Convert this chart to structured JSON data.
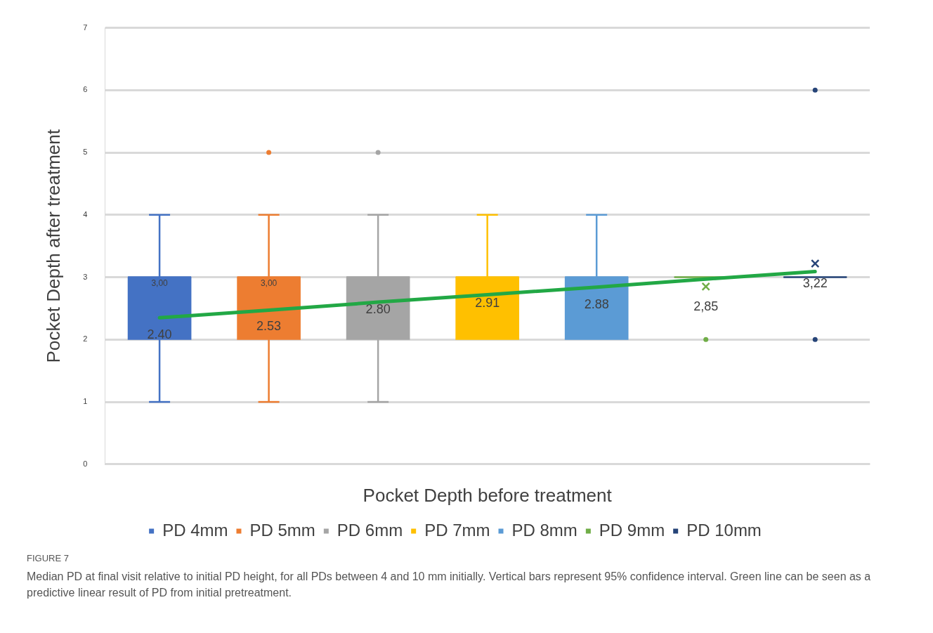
{
  "chart_data": {
    "type": "box",
    "xlabel": "Pocket Depth before treatment",
    "ylabel": "Pocket Depth after treatment",
    "categories": [
      null,
      null,
      null,
      null,
      null,
      null,
      null
    ],
    "ylim": [
      0,
      7
    ],
    "yticks": [
      0,
      1,
      2,
      3,
      4,
      5,
      6,
      7
    ],
    "tick_labels": "y",
    "grid": "y",
    "legend": "bottom",
    "series": [
      {
        "name": "PD 4mm",
        "color": "#4472c4",
        "boxes": [
          {
            "low": 1,
            "q1": 2,
            "median": 3,
            "q3": 3,
            "high": 4,
            "mean": 2.4
          },
          null,
          null,
          null,
          null,
          null,
          null
        ],
        "value_labels": [
          "2.40",
          null,
          null,
          null,
          null,
          null,
          null
        ]
      },
      {
        "name": "PD 5mm",
        "color": "#ed7d31",
        "boxes": [
          null,
          {
            "low": 1,
            "q1": 2,
            "median": 3,
            "q3": 3,
            "high": 4,
            "mean": 2.53,
            "outliers": [
              5
            ]
          },
          null,
          null,
          null,
          null,
          null
        ],
        "value_labels": [
          null,
          "2.53",
          null,
          null,
          null,
          null,
          null
        ]
      },
      {
        "name": "PD 6mm",
        "color": "#a5a5a5",
        "boxes": [
          null,
          null,
          {
            "low": 1,
            "q1": 2,
            "median": 3,
            "q3": 3,
            "high": 4,
            "mean": 2.8,
            "outliers": [
              5
            ]
          },
          null,
          null,
          null,
          null
        ],
        "value_labels": [
          null,
          null,
          "2.80",
          null,
          null,
          null,
          null
        ]
      },
      {
        "name": "PD 7mm",
        "color": "#ffc000",
        "boxes": [
          null,
          null,
          null,
          {
            "low": 2,
            "q1": 2,
            "median": 3,
            "q3": 3,
            "high": 4,
            "mean": 2.91
          },
          null,
          null,
          null
        ],
        "value_labels": [
          null,
          null,
          null,
          "2.91",
          null,
          null,
          null
        ]
      },
      {
        "name": "PD 8mm",
        "color": "#5b9bd5",
        "boxes": [
          null,
          null,
          null,
          null,
          {
            "low": 2,
            "q1": 2,
            "median": 3,
            "q3": 3,
            "high": 4,
            "mean": 2.88
          },
          null,
          null
        ],
        "value_labels": [
          null,
          null,
          null,
          null,
          "2.88",
          null,
          null
        ]
      },
      {
        "name": "PD 9mm",
        "color": "#70ad47",
        "boxes": [
          null,
          null,
          null,
          null,
          null,
          {
            "low": 3,
            "q1": 3,
            "median": 3,
            "q3": 3,
            "high": 3,
            "mean": 2.85,
            "outliers": [
              2
            ]
          },
          null
        ],
        "value_labels": [
          null,
          null,
          null,
          null,
          null,
          "2,85",
          null
        ]
      },
      {
        "name": "PD 10mm",
        "color": "#264478",
        "boxes": [
          null,
          null,
          null,
          null,
          null,
          null,
          {
            "low": 3,
            "q1": 3,
            "median": 3,
            "q3": 3,
            "high": 3,
            "mean": 3.22,
            "outliers": [
              2,
              6
            ]
          }
        ],
        "value_labels": [
          null,
          null,
          null,
          null,
          null,
          null,
          "3,22"
        ]
      },
      {
        "type": "line",
        "color": "#22a845",
        "values": [
          2.35,
          2.47,
          2.6,
          2.72,
          2.84,
          2.97,
          3.09
        ]
      }
    ],
    "annotations": [
      {
        "text": "3,00",
        "y": 3
      },
      {
        "text": "3,00",
        "y": 3
      },
      "FIGURE 7",
      "Median PD at final visit relative to initial PD height, for all PDs between 4 and 10 mm initially. Vertical bars represent 95% confidence interval. Green line can be seen as a predictive linear result of PD from initial pretreatment."
    ]
  }
}
